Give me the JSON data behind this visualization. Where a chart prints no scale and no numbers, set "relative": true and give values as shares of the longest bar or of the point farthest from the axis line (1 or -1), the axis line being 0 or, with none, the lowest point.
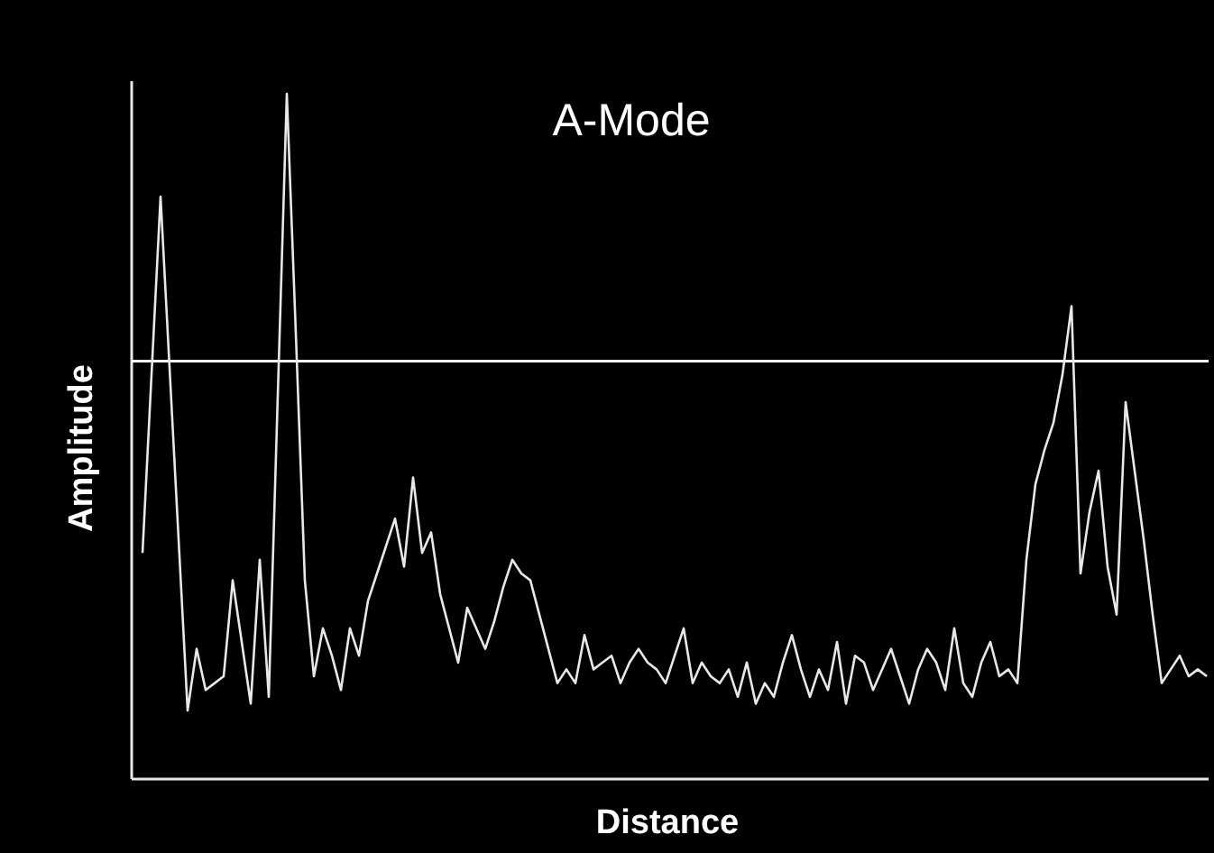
{
  "chart_data": {
    "type": "line",
    "title": "A-Mode",
    "xlabel": "Distance",
    "ylabel": "Amplitude",
    "relative": true,
    "categories": [
      null,
      null,
      null,
      null,
      null,
      null,
      null,
      null,
      null,
      null,
      null,
      null,
      null,
      null,
      null,
      null,
      null,
      null,
      null,
      null,
      null,
      null,
      null,
      null,
      null,
      null,
      null,
      null,
      null,
      null,
      null,
      null,
      null,
      null,
      null,
      null,
      null,
      null,
      null,
      null,
      null,
      null,
      null,
      null,
      null,
      null,
      null,
      null,
      null,
      null,
      null,
      null,
      null,
      null,
      null,
      null,
      null,
      null,
      null,
      null,
      null,
      null,
      null,
      null,
      null,
      null,
      null,
      null,
      null,
      null,
      null,
      null,
      null,
      null,
      null,
      null,
      null,
      null,
      null,
      null,
      null,
      null,
      null,
      null,
      null,
      null,
      null,
      null,
      null,
      null,
      null,
      null,
      null,
      null,
      null,
      null,
      null,
      null,
      null,
      null,
      null,
      null,
      null,
      null,
      null,
      null,
      null,
      null,
      null,
      null,
      null,
      null,
      null,
      null,
      null,
      null,
      null,
      null,
      null
    ],
    "series": [
      {
        "color": "#e8e8e8",
        "values": [
          0.33,
          0.59,
          0.85,
          0.6,
          0.35,
          0.1,
          0.19,
          0.13,
          0.14,
          0.15,
          0.29,
          0.2,
          0.11,
          0.32,
          0.12,
          0.56,
          1.0,
          0.65,
          0.29,
          0.15,
          0.22,
          0.18,
          0.13,
          0.22,
          0.18,
          0.26,
          0.3,
          0.34,
          0.38,
          0.31,
          0.44,
          0.33,
          0.36,
          0.27,
          0.22,
          0.17,
          0.25,
          0.22,
          0.19,
          0.23,
          0.28,
          0.32,
          0.3,
          0.29,
          0.24,
          0.19,
          0.14,
          0.16,
          0.14,
          0.21,
          0.16,
          0.17,
          0.18,
          0.14,
          0.17,
          0.19,
          0.17,
          0.16,
          0.14,
          0.18,
          0.22,
          0.14,
          0.17,
          0.15,
          0.14,
          0.16,
          0.12,
          0.17,
          0.11,
          0.14,
          0.12,
          0.17,
          0.21,
          0.16,
          0.12,
          0.16,
          0.13,
          0.2,
          0.11,
          0.18,
          0.17,
          0.13,
          0.16,
          0.19,
          0.15,
          0.11,
          0.16,
          0.19,
          0.17,
          0.13,
          0.22,
          0.14,
          0.12,
          0.17,
          0.2,
          0.15,
          0.16,
          0.14,
          0.32,
          0.43,
          0.48,
          0.52,
          0.59,
          0.69,
          0.3,
          0.39,
          0.45,
          0.31,
          0.24,
          0.55,
          0.45,
          0.35,
          0.24,
          0.14,
          0.16,
          0.18,
          0.15,
          0.16,
          0.15
        ]
      }
    ],
    "ref_lines": [
      {
        "axis": "y",
        "value": 0.61,
        "color": "#ffffff"
      }
    ]
  }
}
